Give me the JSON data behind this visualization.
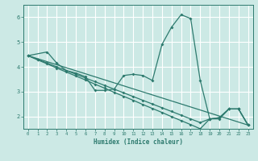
{
  "xlabel": "Humidex (Indice chaleur)",
  "bg_color": "#cce9e5",
  "grid_color": "#ffffff",
  "line_color": "#2d7a6e",
  "xlim": [
    -0.5,
    23.5
  ],
  "ylim": [
    1.5,
    6.5
  ],
  "yticks": [
    2,
    3,
    4,
    5,
    6
  ],
  "xticks": [
    0,
    1,
    2,
    3,
    4,
    5,
    6,
    7,
    8,
    9,
    10,
    11,
    12,
    13,
    14,
    15,
    16,
    17,
    18,
    19,
    20,
    21,
    22,
    23
  ],
  "line1_x": [
    0,
    2,
    3,
    4,
    5,
    6,
    7,
    8,
    9,
    10,
    11,
    12,
    13,
    14,
    15,
    16,
    17,
    18,
    19,
    20,
    21,
    22,
    23
  ],
  "line1_y": [
    4.45,
    4.6,
    4.15,
    3.85,
    3.75,
    3.6,
    3.05,
    3.05,
    3.1,
    3.65,
    3.7,
    3.65,
    3.45,
    4.9,
    5.6,
    6.1,
    5.95,
    3.45,
    1.9,
    1.9,
    2.3,
    2.3,
    1.65
  ],
  "line2_x": [
    0,
    23
  ],
  "line2_y": [
    4.45,
    1.65
  ],
  "line3_x": [
    0,
    1,
    2,
    3,
    4,
    5,
    6,
    7,
    8,
    9,
    10,
    11,
    12,
    13,
    14,
    15,
    16,
    17,
    18,
    19,
    20,
    21,
    22,
    23
  ],
  "line3_y": [
    4.45,
    4.28,
    4.12,
    3.95,
    3.79,
    3.63,
    3.47,
    3.3,
    3.14,
    2.97,
    2.81,
    2.65,
    2.48,
    2.32,
    2.16,
    1.99,
    1.83,
    1.67,
    1.5,
    1.9,
    1.95,
    2.3,
    2.3,
    1.65
  ],
  "line4_x": [
    0,
    1,
    2,
    3,
    4,
    5,
    6,
    7,
    8,
    9,
    10,
    11,
    12,
    13,
    14,
    15,
    16,
    17,
    18,
    19,
    20,
    21,
    22,
    23
  ],
  "line4_y": [
    4.45,
    4.3,
    4.15,
    4.0,
    3.85,
    3.7,
    3.55,
    3.4,
    3.25,
    3.1,
    2.95,
    2.8,
    2.65,
    2.5,
    2.35,
    2.2,
    2.05,
    1.9,
    1.75,
    1.9,
    1.95,
    2.3,
    2.3,
    1.65
  ]
}
